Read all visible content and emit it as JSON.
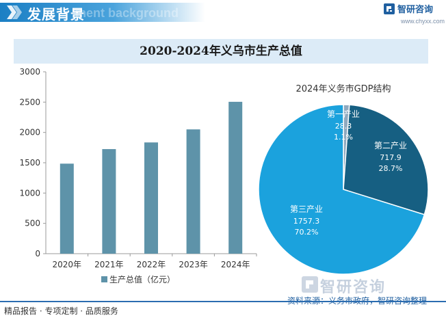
{
  "header": {
    "title": "发展背景",
    "watermark": "ment background",
    "brand_name": "智研咨询",
    "brand_url": "www.chyxx.com"
  },
  "main_title": "2020-2024年义乌市生产总值",
  "colors": {
    "bar": "#5e93a9",
    "pie_primary": "#8fa9bf",
    "pie_secondary": "#165f82",
    "pie_tertiary": "#1ba2dd",
    "accent": "#1b7fc4"
  },
  "chart_data": [
    {
      "type": "bar",
      "categories": [
        "2020年",
        "2021年",
        "2022年",
        "2023年",
        "2024年"
      ],
      "series": [
        {
          "name": "生产总值（亿元）",
          "values": [
            1485,
            1725,
            1835,
            2050,
            2505
          ]
        }
      ],
      "title": "",
      "ylim": [
        0,
        3000
      ],
      "yticks": [
        0,
        500,
        1000,
        1500,
        2000,
        2500,
        3000
      ],
      "grid": false,
      "legend": "bottom"
    },
    {
      "type": "pie",
      "title": "2024年义务市GDP结构",
      "slices": [
        {
          "label": "第一产业",
          "value": 28.3,
          "percent": "1.1%"
        },
        {
          "label": "第二产业",
          "value": 717.9,
          "percent": "28.7%"
        },
        {
          "label": "第三产业",
          "value": 1757.3,
          "percent": "70.2%"
        }
      ]
    }
  ],
  "footer": {
    "left": "精品报告 · 专项定制 · 品质服务",
    "source": "资料来源：义务市政府，智研咨询整理",
    "brand": "智研咨询"
  }
}
